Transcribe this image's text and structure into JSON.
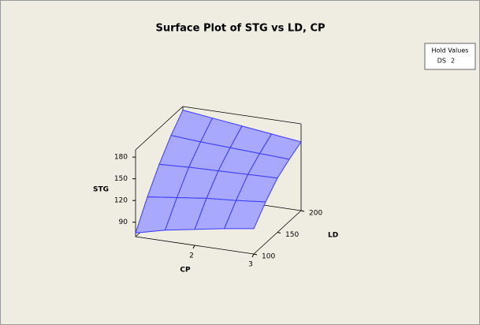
{
  "chart_data": {
    "type": "surface",
    "title": "Surface Plot of STG vs LD, CP",
    "x_label": "CP",
    "y_label": "LD",
    "z_label": "STG",
    "x": [
      1,
      1.5,
      2,
      2.5,
      3
    ],
    "y": [
      100,
      125,
      150,
      175,
      200
    ],
    "z": [
      [
        75,
        110,
        140,
        165,
        185
      ],
      [
        85,
        115,
        142,
        162,
        180
      ],
      [
        92,
        120,
        143,
        160,
        175
      ],
      [
        99,
        123,
        144,
        158,
        170
      ],
      [
        105,
        127,
        145,
        156,
        165
      ]
    ],
    "xlim": [
      1,
      3
    ],
    "ylim": [
      100,
      200
    ],
    "zlim": [
      70,
      190
    ],
    "xticks": [
      2,
      3
    ],
    "yticks": [
      100,
      150,
      200
    ],
    "zticks": [
      90,
      120,
      150,
      180
    ],
    "color": "#3a3aff",
    "fill": "#a8a8ff",
    "hold": {
      "title": "Hold Values",
      "items": [
        {
          "name": "DS",
          "value": 2
        }
      ]
    }
  }
}
